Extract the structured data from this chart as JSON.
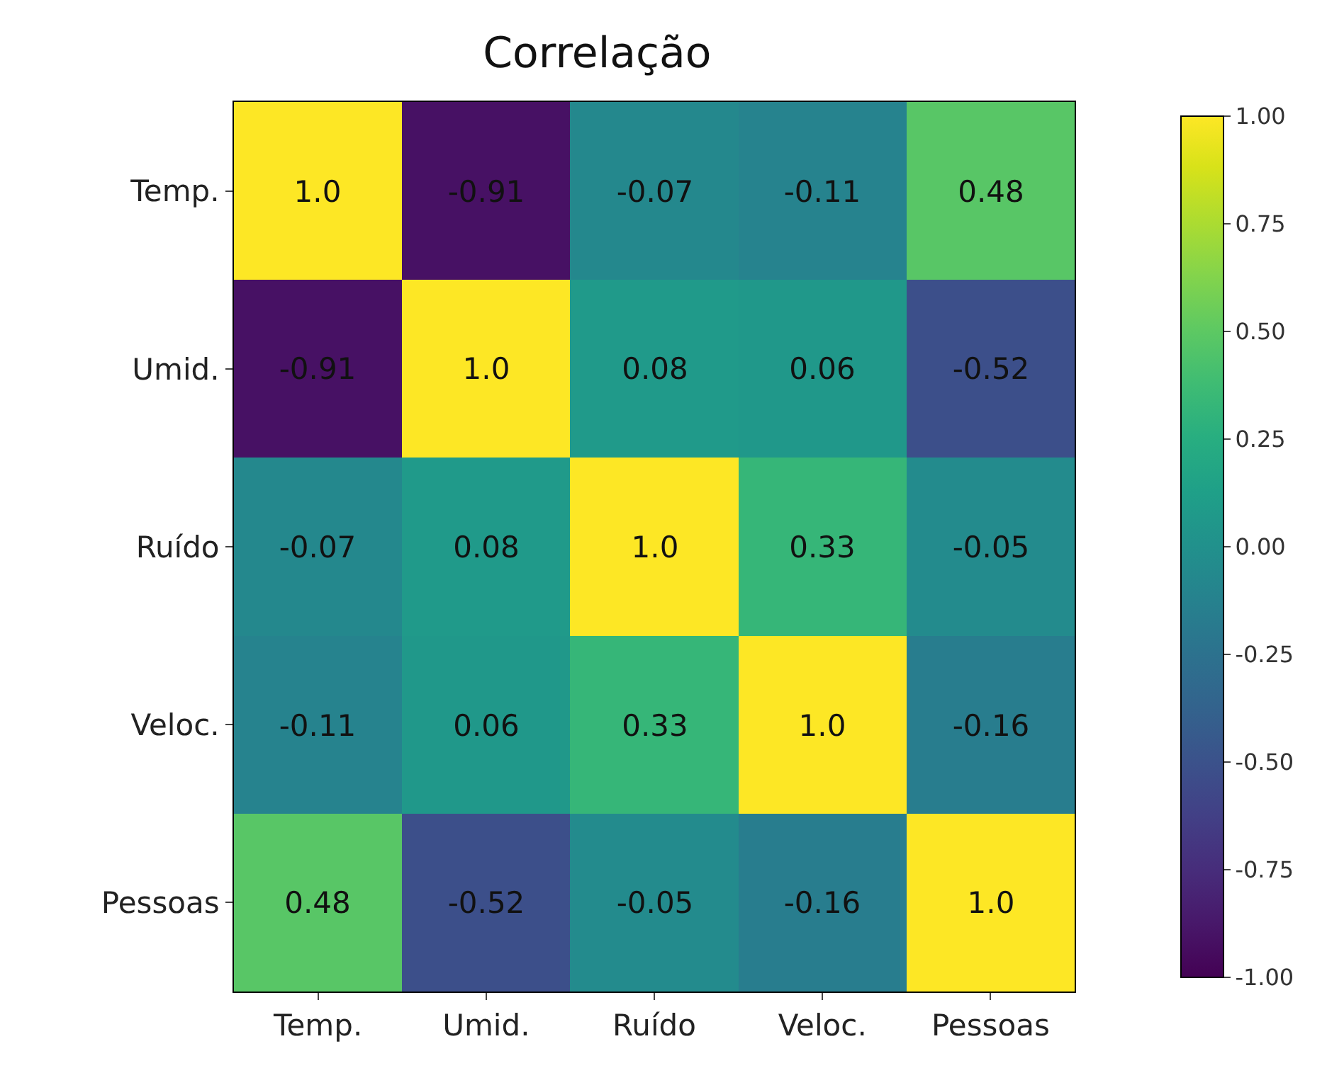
{
  "chart_data": {
    "type": "heatmap",
    "title": "Correlação",
    "categories": [
      "Temp.",
      "Umid.",
      "Ruído",
      "Veloc.",
      "Pessoas"
    ],
    "y_categories": [
      "Temp.",
      "Umid.",
      "Ruído",
      "Veloc.",
      "Pessoas"
    ],
    "cells": [
      [
        1.0,
        -0.91,
        -0.07,
        -0.11,
        0.48
      ],
      [
        -0.91,
        1.0,
        0.08,
        0.06,
        -0.52
      ],
      [
        -0.07,
        0.08,
        1.0,
        0.33,
        -0.05
      ],
      [
        -0.11,
        0.06,
        0.33,
        1.0,
        -0.16
      ],
      [
        0.48,
        -0.52,
        -0.05,
        -0.16,
        1.0
      ]
    ],
    "cell_labels": [
      [
        "1.0",
        "-0.91",
        "-0.07",
        "-0.11",
        "0.48"
      ],
      [
        "-0.91",
        "1.0",
        "0.08",
        "0.06",
        "-0.52"
      ],
      [
        "-0.07",
        "0.08",
        "1.0",
        "0.33",
        "-0.05"
      ],
      [
        "-0.11",
        "0.06",
        "0.33",
        "1.0",
        "-0.16"
      ],
      [
        "0.48",
        "-0.52",
        "-0.05",
        "-0.16",
        "1.0"
      ]
    ],
    "clim": [
      -1,
      1
    ],
    "cticks": [
      {
        "value": -1,
        "label": "-1.00"
      },
      {
        "value": -0.75,
        "label": "-0.75"
      },
      {
        "value": -0.5,
        "label": "-0.50"
      },
      {
        "value": -0.25,
        "label": "-0.25"
      },
      {
        "value": 0,
        "label": "0.00"
      },
      {
        "value": 0.25,
        "label": "0.25"
      },
      {
        "value": 0.5,
        "label": "0.50"
      },
      {
        "value": 0.75,
        "label": "0.75"
      },
      {
        "value": 1,
        "label": "1.00"
      }
    ]
  }
}
